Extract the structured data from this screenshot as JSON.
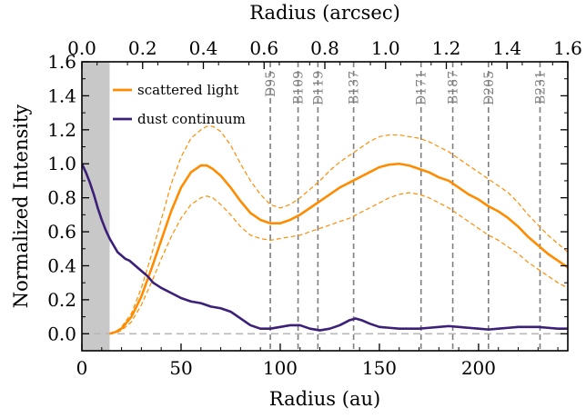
{
  "chart_data": {
    "type": "line",
    "xlabel": "Radius (au)",
    "ylabel": "Normalized Intensity",
    "top_xlabel": "Radius (arcsec)",
    "xlim": [
      0,
      245
    ],
    "ylim": [
      -0.1,
      1.6
    ],
    "top_xlim": [
      0,
      1.6
    ],
    "x_ticks": [
      0,
      50,
      100,
      150,
      200
    ],
    "y_ticks": [
      0.0,
      0.2,
      0.4,
      0.6,
      0.8,
      1.0,
      1.2,
      1.4,
      1.6
    ],
    "y_tick_labels": [
      "0.0",
      "0.2",
      "0.4",
      "0.6",
      "0.8",
      "1.0",
      "1.2",
      "1.4",
      "1.6"
    ],
    "top_ticks": [
      0.0,
      0.2,
      0.4,
      0.6,
      0.8,
      1.0,
      1.2,
      1.4,
      1.6
    ],
    "top_tick_labels": [
      "0.0",
      "0.2",
      "0.4",
      "0.6",
      "0.8",
      "1.0",
      "1.2",
      "1.4",
      "1.6"
    ],
    "shaded_region": [
      0,
      14
    ],
    "zero_line": 0,
    "legend_position": "top-left",
    "series": [
      {
        "name": "scattered light",
        "color": "#ff8c00",
        "x": [
          14,
          17,
          20,
          25,
          30,
          35,
          40,
          45,
          50,
          55,
          60,
          63,
          66,
          70,
          75,
          80,
          85,
          90,
          95,
          100,
          105,
          110,
          115,
          120,
          125,
          130,
          135,
          140,
          145,
          150,
          155,
          160,
          165,
          170,
          175,
          180,
          185,
          190,
          195,
          200,
          205,
          210,
          215,
          220,
          225,
          230,
          235,
          240,
          245
        ],
        "y": [
          0.0,
          0.01,
          0.03,
          0.1,
          0.22,
          0.38,
          0.55,
          0.72,
          0.86,
          0.95,
          0.99,
          0.99,
          0.97,
          0.93,
          0.86,
          0.78,
          0.71,
          0.67,
          0.65,
          0.65,
          0.67,
          0.7,
          0.74,
          0.78,
          0.82,
          0.86,
          0.89,
          0.92,
          0.95,
          0.98,
          0.995,
          1.0,
          0.99,
          0.97,
          0.95,
          0.92,
          0.9,
          0.86,
          0.82,
          0.79,
          0.75,
          0.72,
          0.68,
          0.63,
          0.57,
          0.52,
          0.47,
          0.43,
          0.39
        ],
        "upper": [
          0.0,
          0.01,
          0.04,
          0.12,
          0.27,
          0.46,
          0.67,
          0.88,
          1.04,
          1.15,
          1.2,
          1.22,
          1.22,
          1.19,
          1.11,
          1.0,
          0.9,
          0.82,
          0.76,
          0.74,
          0.76,
          0.8,
          0.85,
          0.9,
          0.96,
          1.01,
          1.05,
          1.09,
          1.13,
          1.16,
          1.17,
          1.17,
          1.16,
          1.15,
          1.13,
          1.1,
          1.07,
          1.03,
          0.99,
          0.95,
          0.91,
          0.87,
          0.83,
          0.77,
          0.7,
          0.64,
          0.58,
          0.53,
          0.48
        ],
        "lower": [
          0.0,
          0.005,
          0.02,
          0.07,
          0.17,
          0.3,
          0.44,
          0.57,
          0.68,
          0.76,
          0.8,
          0.81,
          0.8,
          0.76,
          0.7,
          0.63,
          0.58,
          0.56,
          0.55,
          0.56,
          0.57,
          0.58,
          0.6,
          0.62,
          0.64,
          0.66,
          0.68,
          0.71,
          0.74,
          0.77,
          0.8,
          0.82,
          0.83,
          0.82,
          0.8,
          0.77,
          0.74,
          0.7,
          0.66,
          0.62,
          0.58,
          0.55,
          0.51,
          0.47,
          0.42,
          0.38,
          0.34,
          0.3,
          0.27
        ]
      },
      {
        "name": "dust continuum",
        "color": "#3b1f78",
        "x": [
          0,
          2,
          4,
          6,
          8,
          10,
          12,
          14,
          16,
          18,
          20,
          22,
          24,
          26,
          28,
          30,
          33,
          36,
          40,
          45,
          50,
          55,
          60,
          65,
          70,
          75,
          80,
          85,
          90,
          95,
          100,
          105,
          110,
          115,
          120,
          125,
          130,
          135,
          138,
          141,
          145,
          150,
          155,
          160,
          165,
          170,
          175,
          180,
          185,
          190,
          195,
          200,
          205,
          210,
          215,
          220,
          225,
          230,
          235,
          240,
          245
        ],
        "y": [
          1.0,
          0.95,
          0.89,
          0.82,
          0.74,
          0.67,
          0.61,
          0.56,
          0.52,
          0.48,
          0.46,
          0.44,
          0.43,
          0.41,
          0.39,
          0.37,
          0.34,
          0.3,
          0.27,
          0.24,
          0.21,
          0.19,
          0.18,
          0.16,
          0.15,
          0.13,
          0.09,
          0.05,
          0.03,
          0.03,
          0.04,
          0.05,
          0.05,
          0.03,
          0.02,
          0.03,
          0.05,
          0.08,
          0.09,
          0.08,
          0.06,
          0.04,
          0.035,
          0.03,
          0.03,
          0.03,
          0.035,
          0.04,
          0.045,
          0.04,
          0.035,
          0.03,
          0.025,
          0.03,
          0.035,
          0.04,
          0.04,
          0.04,
          0.035,
          0.03,
          0.03
        ]
      }
    ],
    "rings": [
      {
        "label": "D95",
        "x": 95
      },
      {
        "label": "B109",
        "x": 109
      },
      {
        "label": "D119",
        "x": 119
      },
      {
        "label": "B137",
        "x": 137
      },
      {
        "label": "D171",
        "x": 171
      },
      {
        "label": "B187",
        "x": 187
      },
      {
        "label": "D205",
        "x": 205
      },
      {
        "label": "B231",
        "x": 231
      }
    ]
  }
}
